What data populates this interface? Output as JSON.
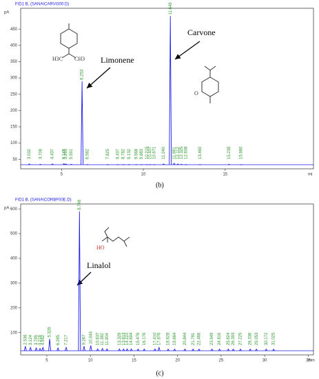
{
  "chart_data": [
    {
      "type": "line",
      "title": "FID1 B, (SANA\\CARVI300.D)",
      "y_label": "pA",
      "x_label": "mi",
      "panel_label": "(b)",
      "annotations": [
        "Limonene",
        "Carvone"
      ],
      "structure_labels": [
        "H3C",
        "CH3",
        "O"
      ],
      "x": [
        3.032,
        3.708,
        4.437,
        5.145,
        5.265,
        5.591,
        6.253,
        6.582,
        7.825,
        8.437,
        8.782,
        9.132,
        9.568,
        9.883,
        10.215,
        10.407,
        10.671,
        11.24,
        11.649,
        11.881,
        12.112,
        12.325,
        12.608,
        13.46,
        15.239,
        15.98
      ],
      "x_labels": [
        "3.032",
        "3.708",
        "4.437",
        "5.145",
        "5.265",
        "5.591",
        "6.253",
        "6.582",
        "7.825",
        "8.437",
        "8.782",
        "9.132",
        "9.568",
        "9.883",
        "10.215",
        "10.407",
        "10.671",
        "11.240",
        "11.649",
        "11.881",
        "12.112",
        "12.325",
        "12.608",
        "13.460",
        "15.239",
        "15.980"
      ],
      "values": [
        36,
        35,
        36,
        37,
        36,
        35,
        290,
        34,
        34,
        34,
        34,
        34,
        34,
        34,
        34,
        34,
        34,
        36,
        490,
        38,
        36,
        35,
        34,
        34,
        35,
        34
      ],
      "color": "#1a1aee",
      "label_color": "#2e9a2e",
      "xlim": [
        2.5,
        20.4
      ],
      "ylim": [
        21,
        514
      ],
      "xticks": [
        5,
        10,
        15
      ],
      "yticks": [
        50,
        100,
        150,
        200,
        250,
        300,
        350,
        400,
        450
      ]
    },
    {
      "type": "line",
      "title": "FID1 B, (SANA\\CORBF00E.D)",
      "y_label": "pA",
      "x_label": "min",
      "panel_label": "(c)",
      "annotations": [
        "Linalol"
      ],
      "structure_labels": [
        "HO"
      ],
      "x": [
        2.536,
        3.124,
        3.785,
        4.216,
        4.552,
        5.329,
        6.285,
        7.217,
        8.748,
        9.267,
        10.044,
        10.837,
        11.382,
        11.904,
        13.329,
        13.813,
        14.222,
        14.694,
        15.476,
        16.176,
        17.41,
        17.876,
        18.928,
        19.664,
        20.844,
        21.781,
        22.466,
        23.949,
        24.816,
        25.824,
        26.393,
        27.225,
        28.336,
        29.053,
        30.172,
        31.025
      ],
      "x_labels": [
        "2.536",
        "3.124",
        "3.785",
        "4.216",
        "4.552",
        "5.329",
        "6.285",
        "7.217",
        "8.748",
        "9.267",
        "10.044",
        "10.837",
        "11.382",
        "11.904",
        "13.329",
        "13.813",
        "14.222",
        "14.694",
        "15.476",
        "16.176",
        "17.410",
        "17.876",
        "18.928",
        "19.664",
        "20.844",
        "21.781",
        "22.466",
        "23.949",
        "24.816",
        "25.824",
        "26.393",
        "27.225",
        "28.336",
        "29.053",
        "30.172",
        "31.025"
      ],
      "values": [
        45,
        40,
        38,
        36,
        40,
        75,
        38,
        40,
        590,
        45,
        48,
        34,
        36,
        34,
        34,
        33,
        34,
        34,
        33,
        33,
        34,
        40,
        33,
        33,
        33,
        33,
        33,
        33,
        33,
        33,
        33,
        33,
        33,
        33,
        33,
        33
      ],
      "color": "#1a1aee",
      "label_color": "#2e9a2e",
      "xlim": [
        2,
        35.6
      ],
      "ylim": [
        10,
        620
      ],
      "xticks": [
        5,
        10,
        15,
        20,
        25,
        30,
        35
      ],
      "yticks": [
        100,
        200,
        300,
        400,
        500,
        600
      ]
    }
  ]
}
